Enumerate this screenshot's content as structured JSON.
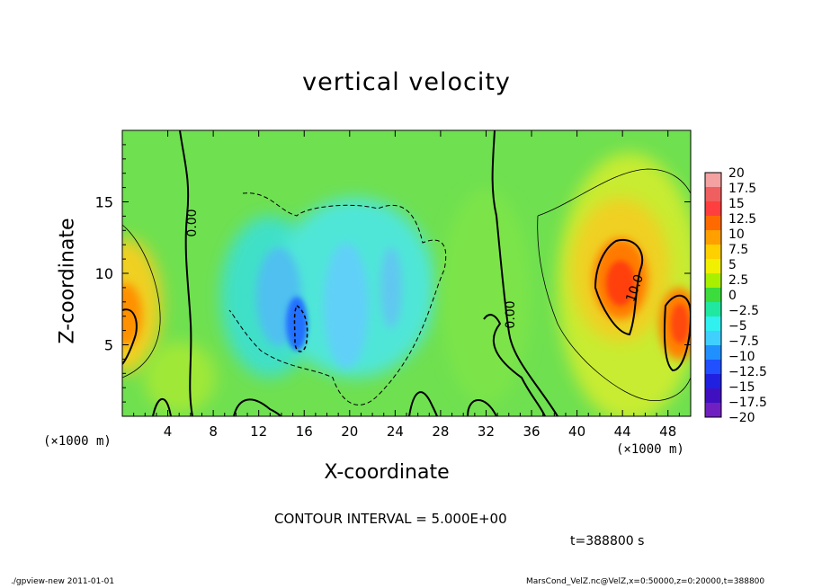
{
  "chart_data": {
    "type": "heatmap",
    "title": "vertical velocity",
    "xlabel": "X-coordinate",
    "ylabel": "Z-coordinate",
    "x_unit": "(×1000 m)",
    "z_unit": "(×1000 m)",
    "xlim": [
      0,
      50
    ],
    "zlim": [
      0,
      20
    ],
    "x_ticks": [
      4,
      8,
      12,
      16,
      20,
      24,
      28,
      32,
      36,
      40,
      44,
      48
    ],
    "z_ticks": [
      5,
      10,
      15
    ],
    "colorbar": {
      "labels": [
        "20",
        "17.5",
        "15",
        "12.5",
        "10",
        "7.5",
        "5",
        "2.5",
        "0",
        "−2.5",
        "−5",
        "−7.5",
        "−10",
        "−12.5",
        "−15",
        "−17.5",
        "−20"
      ],
      "colors": [
        "#f3a1a1",
        "#ef5f5f",
        "#ff3f3f",
        "#ff6a00",
        "#ffa000",
        "#ffd000",
        "#f0f000",
        "#a8f000",
        "#3cdc3c",
        "#20e8a0",
        "#30f0f0",
        "#40d0ff",
        "#2090ff",
        "#2050ff",
        "#2020e0",
        "#4010c0",
        "#7020c0"
      ]
    },
    "contour_labels": [
      "0.00",
      "0.00",
      "10.0"
    ],
    "contour_interval": "CONTOUR INTERVAL = 5.000E+00",
    "time": "t=388800 s"
  },
  "footer": {
    "left": "./gpview-new  2011-01-01",
    "right": "MarsCond_VelZ.nc@VelZ,x=0:50000,z=0:20000,t=388800"
  }
}
